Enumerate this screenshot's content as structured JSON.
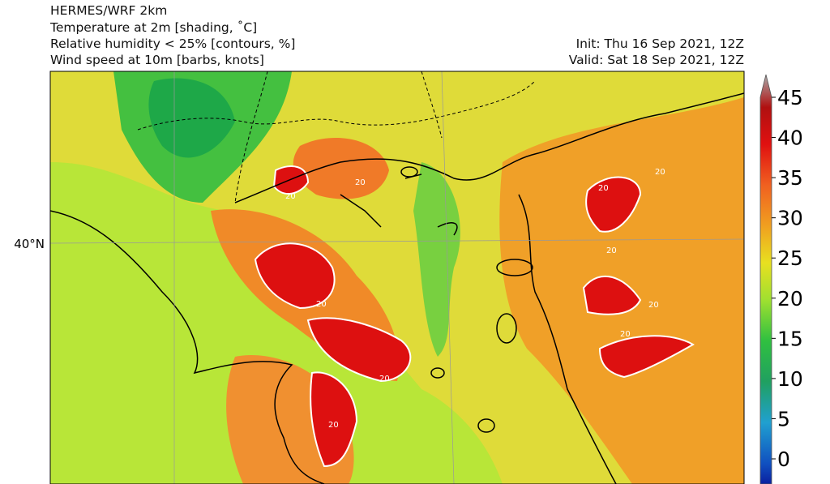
{
  "header": {
    "title": "HERMES/WRF 2km",
    "lines": [
      "Temperature at 2m [shading, ˚C]",
      "Relative humidity < 25% [contours, %]",
      "Wind speed at 10m [barbs, knots]"
    ],
    "init": "Init: Thu 16 Sep 2021, 12Z",
    "valid": "Valid: Sat 18 Sep 2021, 12Z"
  },
  "map": {
    "lat_label": "40°N"
  },
  "colorbar": {
    "ticks": [
      0,
      5,
      10,
      15,
      20,
      25,
      30,
      35,
      40,
      45
    ]
  },
  "contour_labels": [
    "20",
    "20",
    "20",
    "20",
    "20",
    "20",
    "20",
    "20",
    "20",
    "20"
  ]
}
